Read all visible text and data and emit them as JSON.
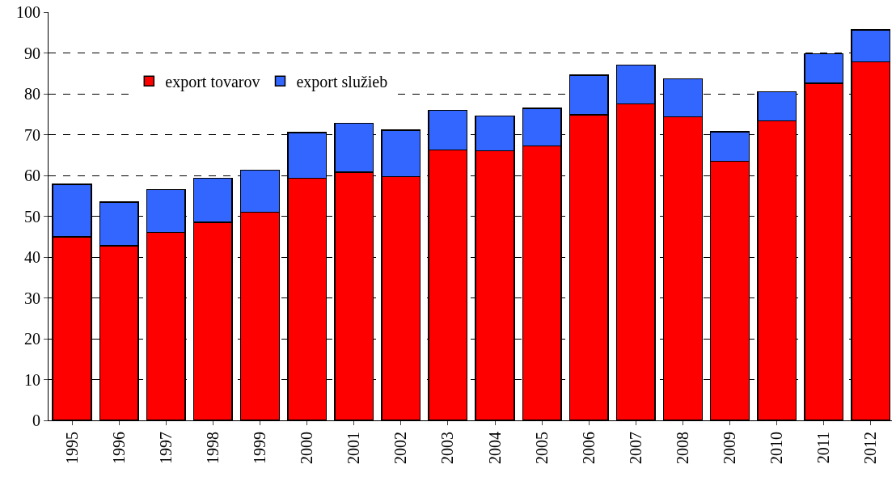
{
  "chart_data": {
    "type": "bar",
    "stacked": true,
    "categories": [
      "1995",
      "1996",
      "1997",
      "1998",
      "1999",
      "2000",
      "2001",
      "2002",
      "2003",
      "2004",
      "2005",
      "2006",
      "2007",
      "2008",
      "2009",
      "2010",
      "2011",
      "2012"
    ],
    "series": [
      {
        "name": "export tovarov",
        "color": "#ff0000",
        "values": [
          45.0,
          42.8,
          46.0,
          48.5,
          51.0,
          59.3,
          60.8,
          59.7,
          66.2,
          66.0,
          67.2,
          74.9,
          77.5,
          74.4,
          63.5,
          73.4,
          82.6,
          87.8
        ]
      },
      {
        "name": "export služieb",
        "color": "#3366ff",
        "values": [
          12.8,
          10.7,
          10.5,
          10.8,
          10.3,
          11.2,
          12.0,
          11.4,
          9.7,
          8.6,
          9.2,
          9.7,
          9.5,
          9.3,
          7.2,
          7.1,
          7.2,
          7.8
        ]
      }
    ],
    "ylim": [
      0,
      100
    ],
    "yticks": [
      0,
      10,
      20,
      30,
      40,
      50,
      60,
      70,
      80,
      90,
      100
    ],
    "grid": "y",
    "legend": "top left"
  }
}
